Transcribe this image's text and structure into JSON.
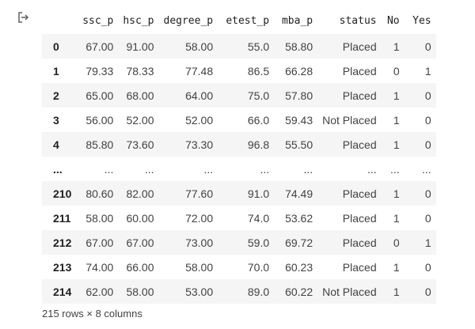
{
  "table": {
    "columns": [
      "ssc_p",
      "hsc_p",
      "degree_p",
      "etest_p",
      "mba_p",
      "status",
      "No",
      "Yes"
    ],
    "rows": [
      {
        "index": "0",
        "cells": [
          "67.00",
          "91.00",
          "58.00",
          "55.0",
          "58.80",
          "Placed",
          "1",
          "0"
        ]
      },
      {
        "index": "1",
        "cells": [
          "79.33",
          "78.33",
          "77.48",
          "86.5",
          "66.28",
          "Placed",
          "0",
          "1"
        ]
      },
      {
        "index": "2",
        "cells": [
          "65.00",
          "68.00",
          "64.00",
          "75.0",
          "57.80",
          "Placed",
          "1",
          "0"
        ]
      },
      {
        "index": "3",
        "cells": [
          "56.00",
          "52.00",
          "52.00",
          "66.0",
          "59.43",
          "Not Placed",
          "1",
          "0"
        ]
      },
      {
        "index": "4",
        "cells": [
          "85.80",
          "73.60",
          "73.30",
          "96.8",
          "55.50",
          "Placed",
          "1",
          "0"
        ]
      },
      {
        "index": "...",
        "cells": [
          "...",
          "...",
          "...",
          "...",
          "...",
          "...",
          "...",
          "..."
        ]
      },
      {
        "index": "210",
        "cells": [
          "80.60",
          "82.00",
          "77.60",
          "91.0",
          "74.49",
          "Placed",
          "1",
          "0"
        ]
      },
      {
        "index": "211",
        "cells": [
          "58.00",
          "60.00",
          "72.00",
          "74.0",
          "53.62",
          "Placed",
          "1",
          "0"
        ]
      },
      {
        "index": "212",
        "cells": [
          "67.00",
          "67.00",
          "73.00",
          "59.0",
          "69.72",
          "Placed",
          "0",
          "1"
        ]
      },
      {
        "index": "213",
        "cells": [
          "74.00",
          "66.00",
          "58.00",
          "70.0",
          "60.23",
          "Placed",
          "1",
          "0"
        ]
      },
      {
        "index": "214",
        "cells": [
          "62.00",
          "58.00",
          "53.00",
          "89.0",
          "60.22",
          "Not Placed",
          "1",
          "0"
        ]
      }
    ]
  },
  "footer": {
    "shape_text": "215 rows × 8 columns"
  },
  "icons": {
    "output_icon": "output-redirect-icon"
  }
}
